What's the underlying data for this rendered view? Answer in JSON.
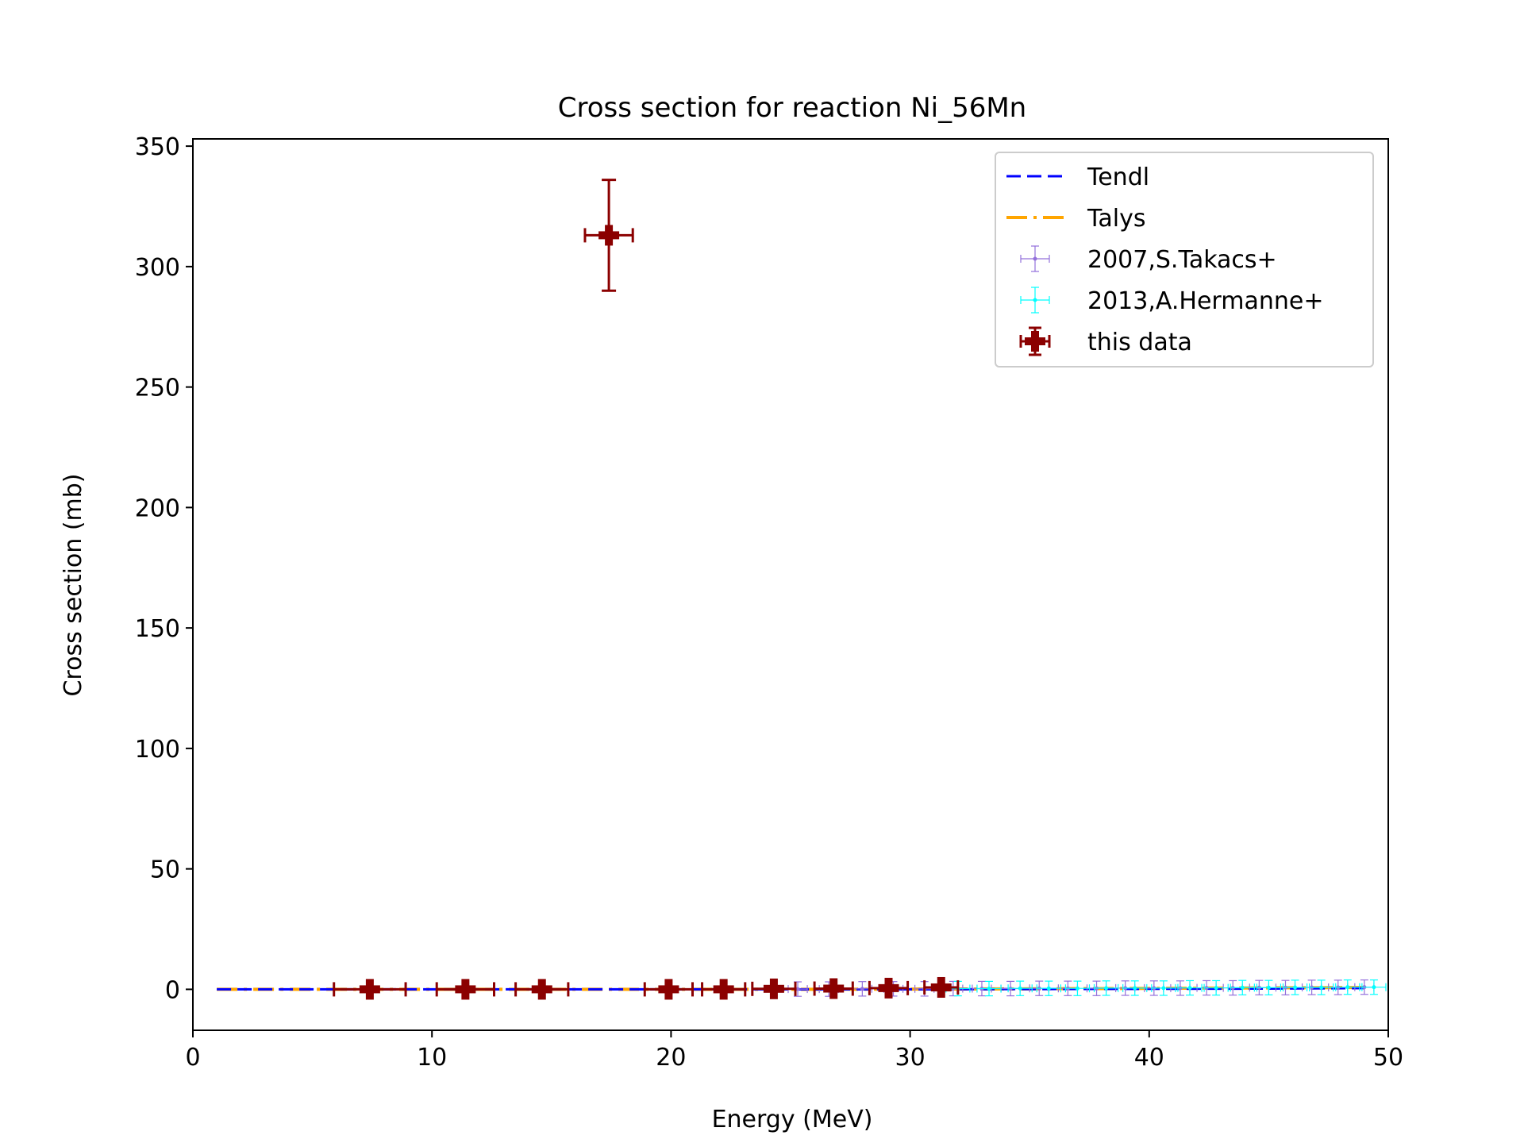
{
  "chart_data": {
    "type": "scatter",
    "title": "Cross section for reaction Ni_56Mn",
    "xlabel": "Energy (MeV)",
    "ylabel": "Cross section (mb)",
    "xlim": [
      0,
      50
    ],
    "ylim": [
      -17,
      353
    ],
    "xticks": [
      0,
      10,
      20,
      30,
      40,
      50
    ],
    "yticks": [
      0,
      50,
      100,
      150,
      200,
      250,
      300,
      350
    ],
    "legend_position": "top-right",
    "grid": false,
    "series": [
      {
        "name": "Tendl",
        "kind": "line",
        "style": "dashed",
        "color": "#0000ff",
        "x": [
          1,
          5,
          10,
          15,
          20,
          25,
          30,
          35,
          40,
          45,
          49
        ],
        "y": [
          0,
          0,
          0,
          0,
          0,
          0,
          0,
          0.1,
          0.2,
          0.3,
          0.5
        ]
      },
      {
        "name": "Talys",
        "kind": "line",
        "style": "dashdot",
        "color": "#ffa500",
        "x": [
          1,
          5,
          10,
          15,
          20,
          25,
          30,
          35,
          40,
          45,
          49
        ],
        "y": [
          0,
          0,
          0,
          0,
          0,
          0,
          0.1,
          0.2,
          0.4,
          0.6,
          0.8
        ]
      },
      {
        "name": "2007,S.Takacs+",
        "kind": "errorbar",
        "color": "#9370db",
        "x": [
          25.3,
          26.6,
          28.0,
          29.3,
          30.6,
          31.8,
          33.0,
          34.2,
          35.4,
          36.6,
          37.8,
          39.0,
          40.2,
          41.3,
          42.4,
          43.5,
          44.6,
          45.7,
          46.8,
          47.9,
          49.0
        ],
        "y": [
          0.1,
          0.1,
          0.2,
          0.2,
          0.2,
          0.3,
          0.3,
          0.3,
          0.4,
          0.4,
          0.4,
          0.5,
          0.5,
          0.5,
          0.6,
          0.6,
          0.7,
          0.7,
          0.8,
          0.8,
          0.9
        ],
        "xerr": 0.4,
        "yerr": 3
      },
      {
        "name": "2013,A.Hermanne+",
        "kind": "errorbar",
        "color": "#00ffff",
        "x": [
          32.0,
          33.3,
          34.6,
          35.8,
          37.0,
          38.2,
          39.4,
          40.6,
          41.7,
          42.8,
          43.9,
          45.0,
          46.1,
          47.2,
          48.3,
          49.4
        ],
        "y": [
          0.3,
          0.3,
          0.4,
          0.4,
          0.4,
          0.5,
          0.5,
          0.5,
          0.6,
          0.6,
          0.7,
          0.7,
          0.8,
          0.8,
          0.9,
          0.9
        ],
        "xerr": 0.5,
        "yerr": 3
      },
      {
        "name": "this data",
        "kind": "errorbar",
        "color": "#8b0000",
        "x": [
          7.4,
          11.4,
          14.6,
          17.4,
          19.9,
          22.2,
          24.3,
          26.8,
          29.1,
          31.3
        ],
        "y": [
          0,
          0,
          0,
          313,
          0,
          0,
          0.2,
          0.3,
          0.5,
          0.8
        ],
        "xerr": [
          1.5,
          1.2,
          1.1,
          1.0,
          1.0,
          0.9,
          0.9,
          0.8,
          0.8,
          0.7
        ],
        "yerr": [
          0,
          0,
          0,
          23,
          0,
          0,
          0,
          0,
          0,
          0
        ]
      }
    ]
  }
}
